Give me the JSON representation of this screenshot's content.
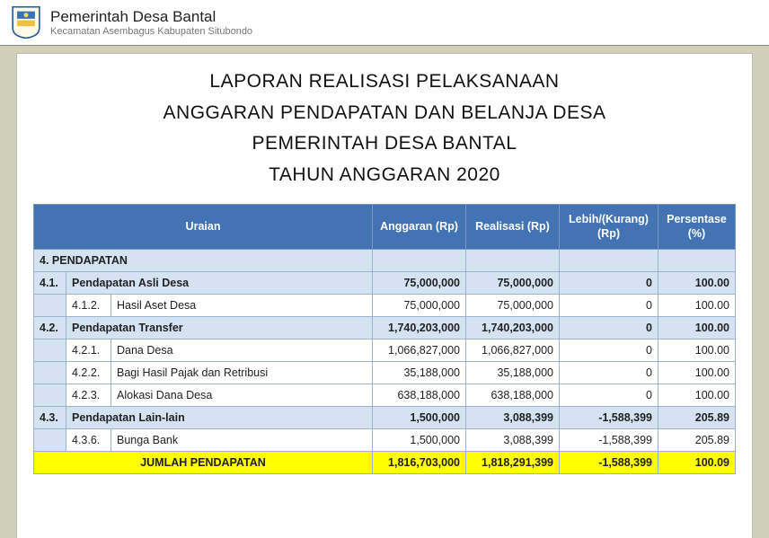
{
  "header": {
    "title": "Pemerintah Desa Bantal",
    "subtitle": "Kecamatan Asembagus  Kabupaten Situbondo"
  },
  "report_title": {
    "l1": "LAPORAN REALISASI PELAKSANAAN",
    "l2": "ANGGARAN PENDAPATAN DAN BELANJA DESA",
    "l3": "PEMERINTAH DESA BANTAL",
    "l4": "TAHUN ANGGARAN 2020"
  },
  "columns": {
    "uraian": "Uraian",
    "anggaran": "Anggaran (Rp)",
    "realisasi": "Realisasi (Rp)",
    "lebih": "Lebih/(Kurang) (Rp)",
    "persen": "Persentase (%)"
  },
  "rows": [
    {
      "type": "section",
      "c1": "4.",
      "c2": "",
      "c3": "PENDAPATAN",
      "ang": "",
      "real": "",
      "diff": "",
      "pct": ""
    },
    {
      "type": "subsection",
      "c1": "4.1.",
      "c2": "",
      "c3": "Pendapatan Asli Desa",
      "ang": "75,000,000",
      "real": "75,000,000",
      "diff": "0",
      "pct": "100.00"
    },
    {
      "type": "detail",
      "c1": "",
      "c2": "4.1.2.",
      "c3": "Hasil Aset Desa",
      "ang": "75,000,000",
      "real": "75,000,000",
      "diff": "0",
      "pct": "100.00"
    },
    {
      "type": "subsection",
      "c1": "4.2.",
      "c2": "",
      "c3": "Pendapatan Transfer",
      "ang": "1,740,203,000",
      "real": "1,740,203,000",
      "diff": "0",
      "pct": "100.00"
    },
    {
      "type": "detail",
      "c1": "",
      "c2": "4.2.1.",
      "c3": "Dana Desa",
      "ang": "1,066,827,000",
      "real": "1,066,827,000",
      "diff": "0",
      "pct": "100.00"
    },
    {
      "type": "detail",
      "c1": "",
      "c2": "4.2.2.",
      "c3": "Bagi Hasil Pajak dan Retribusi",
      "ang": "35,188,000",
      "real": "35,188,000",
      "diff": "0",
      "pct": "100.00"
    },
    {
      "type": "detail",
      "c1": "",
      "c2": "4.2.3.",
      "c3": "Alokasi Dana Desa",
      "ang": "638,188,000",
      "real": "638,188,000",
      "diff": "0",
      "pct": "100.00"
    },
    {
      "type": "subsection",
      "c1": "4.3.",
      "c2": "",
      "c3": "Pendapatan Lain-lain",
      "ang": "1,500,000",
      "real": "3,088,399",
      "diff": "-1,588,399",
      "pct": "205.89"
    },
    {
      "type": "detail",
      "c1": "",
      "c2": "4.3.6.",
      "c3": "Bunga Bank",
      "ang": "1,500,000",
      "real": "3,088,399",
      "diff": "-1,588,399",
      "pct": "205.89"
    },
    {
      "type": "total",
      "c1": "",
      "c2": "",
      "c3": "JUMLAH PENDAPATAN",
      "ang": "1,816,703,000",
      "real": "1,818,291,399",
      "diff": "-1,588,399",
      "pct": "100.09"
    }
  ],
  "colors": {
    "page_bg": "#d0d0b8",
    "header_blue": "#4473b3",
    "row_blue": "#d5e2f2",
    "row_yellow": "#ffff00",
    "border": "#9db2cc"
  }
}
